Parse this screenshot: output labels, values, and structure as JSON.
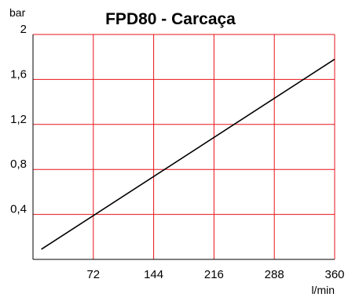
{
  "chart_data": {
    "type": "line",
    "title": "FPD80 - Carcaça",
    "xlabel": "l/min",
    "ylabel": "bar",
    "xlim": [
      0,
      360
    ],
    "ylim": [
      0,
      2
    ],
    "x_ticks": [
      72,
      144,
      216,
      288,
      360
    ],
    "x_tick_labels": [
      "72",
      "144",
      "216",
      "288",
      "360"
    ],
    "y_ticks": [
      0.4,
      0.8,
      1.2,
      1.6,
      2
    ],
    "y_tick_labels": [
      "0,4",
      "0,8",
      "1,2",
      "1,6",
      "2"
    ],
    "grid": true,
    "grid_color": "#e8131c",
    "line_color": "#000000",
    "series": [
      {
        "x": [
          10,
          360
        ],
        "y": [
          0.09,
          1.78
        ]
      }
    ]
  }
}
